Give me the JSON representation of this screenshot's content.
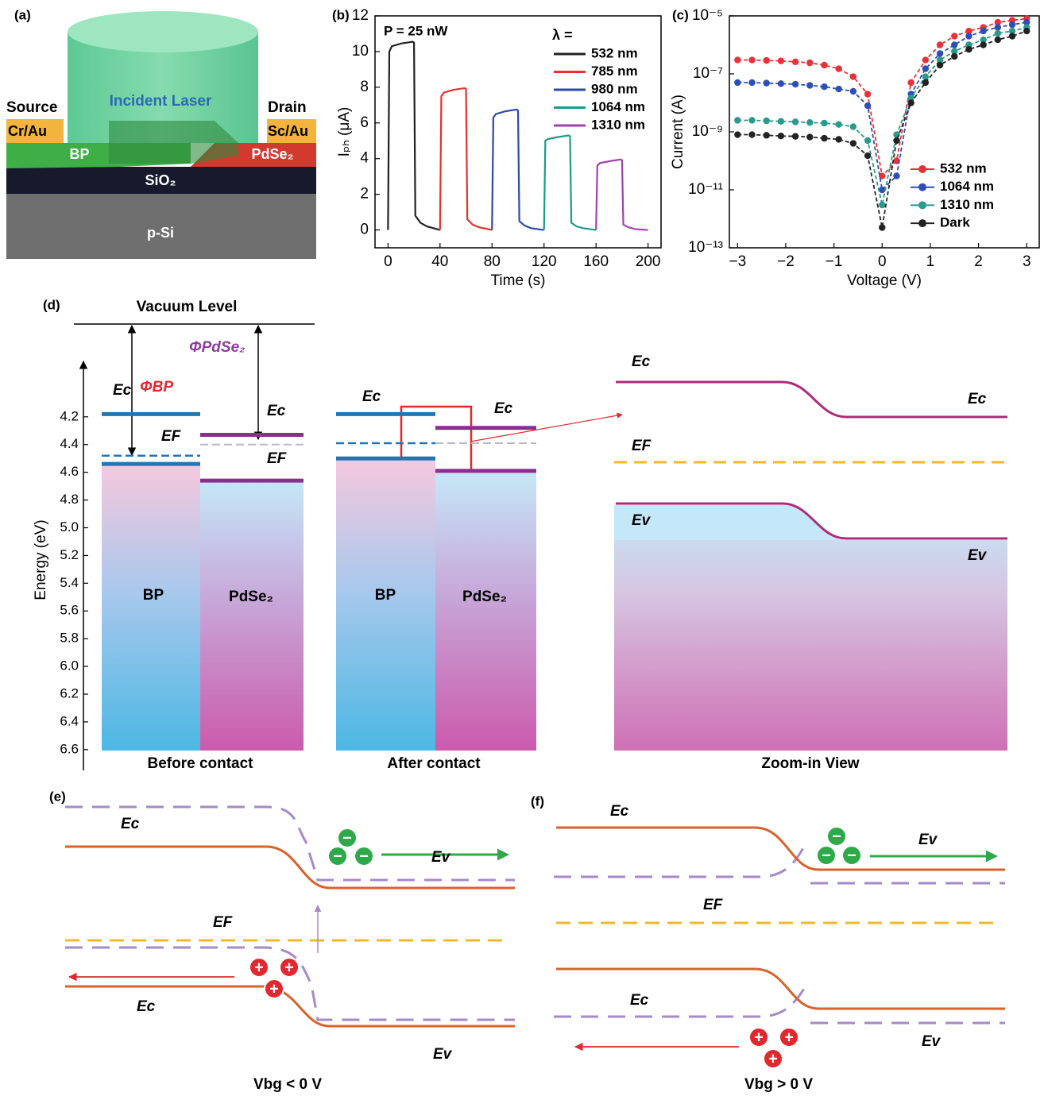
{
  "panel_labels": [
    "(a)",
    "(b)",
    "(c)",
    "(d)",
    "(e)",
    "(f)"
  ],
  "device": {
    "source": "Source",
    "source_metal": "Cr/Au",
    "drain": "Drain",
    "drain_metal": "Sc/Au",
    "laser": "Incident Laser",
    "bp": "BP",
    "pdse2": "PdSe₂",
    "oxide": "SiO₂",
    "substrate": "p-Si"
  },
  "chart_data": [
    {
      "type": "line",
      "annotation": "P = 25 nW",
      "legend_title": "λ =",
      "xlabel": "Time (s)",
      "ylabel": "Iₚₕ (μA)",
      "xlim": [
        -10,
        210
      ],
      "xticks": [
        0,
        40,
        80,
        120,
        160,
        200
      ],
      "ylim": [
        -1,
        12
      ],
      "yticks": [
        0,
        2,
        4,
        6,
        8,
        10,
        12
      ],
      "series": [
        {
          "name": "532 nm",
          "color": "#222222",
          "x": [
            0,
            1,
            3,
            10,
            19,
            20,
            21,
            25,
            30,
            40
          ],
          "values": [
            0,
            10.0,
            10.3,
            10.45,
            10.55,
            10.5,
            0.8,
            0.4,
            0.2,
            0
          ]
        },
        {
          "name": "785 nm",
          "color": "#e8302e",
          "x": [
            40,
            41,
            43,
            50,
            59,
            60,
            61,
            65,
            70,
            80
          ],
          "values": [
            0,
            7.5,
            7.7,
            7.85,
            7.95,
            7.9,
            0.6,
            0.3,
            0.15,
            0
          ]
        },
        {
          "name": "980 nm",
          "color": "#2b4aa8",
          "x": [
            80,
            81,
            83,
            90,
            99,
            100,
            101,
            105,
            110,
            120
          ],
          "values": [
            0,
            6.3,
            6.5,
            6.65,
            6.75,
            6.7,
            0.5,
            0.25,
            0.1,
            0
          ]
        },
        {
          "name": "1064 nm",
          "color": "#1e9a8a",
          "x": [
            120,
            121,
            123,
            130,
            139,
            140,
            141,
            145,
            150,
            160
          ],
          "values": [
            0,
            5.0,
            5.1,
            5.2,
            5.3,
            5.25,
            0.4,
            0.2,
            0.1,
            0
          ]
        },
        {
          "name": "1310 nm",
          "color": "#a040b0",
          "x": [
            160,
            161,
            163,
            170,
            179,
            180,
            181,
            185,
            190,
            200
          ],
          "values": [
            0,
            3.6,
            3.75,
            3.85,
            3.95,
            3.9,
            0.3,
            0.15,
            0.05,
            0
          ]
        }
      ]
    },
    {
      "type": "scatter-line",
      "xlabel": "Voltage (V)",
      "ylabel": "Current (A)",
      "log_y": true,
      "xlim": [
        -3.17,
        3.26
      ],
      "xticks": [
        {
          "value": -3,
          "label": "−3"
        },
        {
          "value": -2,
          "label": "−2"
        },
        {
          "value": -1,
          "label": "−1"
        },
        0,
        1,
        2,
        3
      ],
      "ylim": [
        1e-13,
        1e-05
      ],
      "yticks": [
        {
          "value": 1e-13,
          "label": "10⁻¹³"
        },
        {
          "value": 1e-11,
          "label": "10⁻¹¹"
        },
        {
          "value": 1e-09,
          "label": "10⁻⁹"
        },
        {
          "value": 1e-07,
          "label": "10⁻⁷"
        },
        {
          "value": 1e-05,
          "label": "10⁻⁵"
        }
      ],
      "x": [
        -3,
        -2.7,
        -2.4,
        -2.1,
        -1.8,
        -1.5,
        -1.2,
        -0.9,
        -0.6,
        -0.3,
        0,
        0.3,
        0.6,
        0.9,
        1.2,
        1.5,
        1.8,
        2.1,
        2.4,
        2.7,
        3
      ],
      "series": [
        {
          "name": "532 nm",
          "color": "#e8323a",
          "values": [
            3e-07,
            3e-07,
            2.9e-07,
            2.8e-07,
            2.6e-07,
            2.4e-07,
            2e-07,
            1.5e-07,
            8e-08,
            2e-08,
            3e-11,
            1e-10,
            5e-08,
            3e-07,
            1e-06,
            2e-06,
            3e-06,
            4e-06,
            6e-06,
            7e-06,
            8e-06
          ]
        },
        {
          "name": "1064 nm",
          "color": "#2e4fb5",
          "values": [
            5e-08,
            5e-08,
            4.8e-08,
            4.6e-08,
            4.4e-08,
            4e-08,
            3.6e-08,
            3e-08,
            2.5e-08,
            8e-09,
            1e-11,
            3e-11,
            2e-08,
            1.5e-07,
            5e-07,
            1e-06,
            2e-06,
            3e-06,
            4e-06,
            5e-06,
            6e-06
          ]
        },
        {
          "name": "1310 nm",
          "color": "#2a9a8c",
          "values": [
            2.5e-09,
            2.5e-09,
            2.4e-09,
            2.3e-09,
            2.2e-09,
            2.1e-09,
            2e-09,
            1.8e-09,
            1.5e-09,
            5e-10,
            3e-12,
            8e-10,
            1.5e-08,
            8e-08,
            3e-07,
            6e-07,
            1e-06,
            1.5e-06,
            2.5e-06,
            3e-06,
            4e-06
          ]
        },
        {
          "name": "Dark",
          "color": "#222222",
          "values": [
            8e-10,
            8e-10,
            7.6e-10,
            7.2e-10,
            7e-10,
            6.6e-10,
            6e-10,
            5.5e-10,
            4e-10,
            1.5e-10,
            5e-13,
            5e-10,
            1e-08,
            5e-08,
            2e-07,
            4e-07,
            7e-07,
            1e-06,
            1.5e-06,
            2e-06,
            3e-06
          ]
        }
      ]
    }
  ],
  "band_diagram": {
    "vacuum": "Vacuum Level",
    "phi_bp": "ΦBP",
    "phi_pdse2": "ΦPdSe₂",
    "axis_label": "Energy (eV)",
    "Ec": "Ec",
    "EF": "EF",
    "Ev": "Ev",
    "bp": "BP",
    "pdse2": "PdSe₂",
    "captions": [
      "Before contact",
      "After contact",
      "Zoom-in View"
    ],
    "ylim": [
      3.8,
      6.75
    ],
    "yticks": [
      4.2,
      4.4,
      4.6,
      4.8,
      {
        "value": 5.0,
        "label": "5.0"
      },
      5.2,
      5.4,
      5.6,
      5.8,
      {
        "value": 6.0,
        "label": "6.0"
      },
      6.2,
      6.4,
      6.6
    ],
    "levels": {
      "before": {
        "BP": {
          "Ec": 4.18,
          "EF": 4.48,
          "Ev": 4.54
        },
        "PdSe2": {
          "Ec": 4.33,
          "EF": 4.4,
          "Ev": 4.66
        }
      },
      "after": {
        "BP": {
          "Ec": 4.18,
          "EF": 4.39,
          "Ev": 4.5
        },
        "PdSe2": {
          "Ec": 4.28,
          "EF": 4.39,
          "Ev": 4.59
        }
      }
    }
  },
  "band_panels": {
    "e": [
      "Ec",
      "Ev",
      "EF",
      "Ec",
      "Ev"
    ],
    "e_caption": "Vbg < 0 V",
    "f": [
      "Ec",
      "Ev",
      "EF",
      "Ec",
      "Ev"
    ],
    "f_caption": "Vbg > 0 V"
  },
  "charges": {
    "electron": "−",
    "hole": "+"
  }
}
